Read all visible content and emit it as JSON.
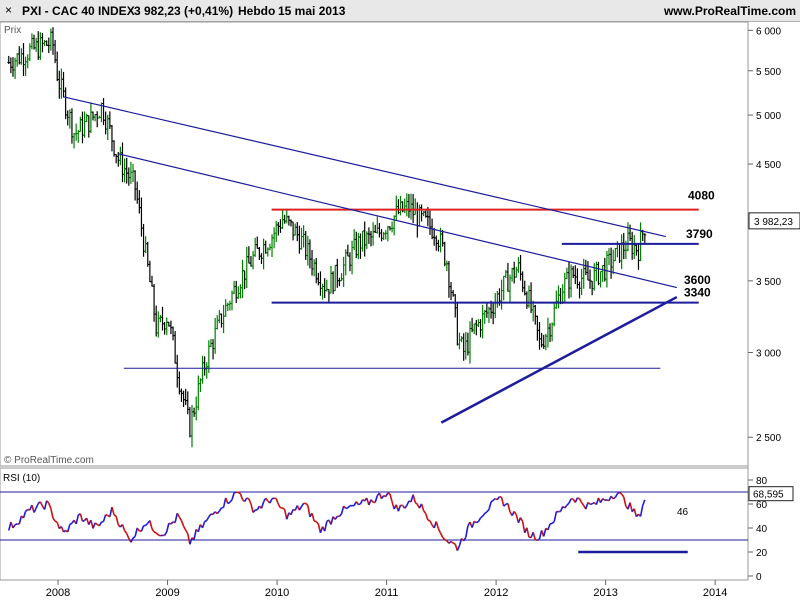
{
  "header": {
    "close_glyph": "×",
    "symbol": "PXI - CAC 40 INDEX",
    "quote": "3 982,23 (+0,41%)",
    "period": "Hebdo",
    "date": "15 mai 2013",
    "site": "www.ProRealTime.com"
  },
  "chart_data": [
    {
      "type": "line",
      "panel": "price",
      "ylabel": "Prix",
      "watermark": "© ProRealTime.com",
      "y_ticks": [
        "6 000",
        "5 500",
        "5 000",
        "4 500",
        "4 000",
        "3 500",
        "3 000",
        "2 500"
      ],
      "y_tick_values": [
        6000,
        5500,
        5000,
        4500,
        4000,
        3500,
        3000,
        2500
      ],
      "x_ticks": [
        "2008",
        "2009",
        "2010",
        "2011",
        "2012",
        "2013",
        "2014"
      ],
      "x_tick_values": [
        2008,
        2009,
        2010,
        2011,
        2012,
        2013,
        2014
      ],
      "last_price_label": "3 982,23",
      "last_price": 3982.23,
      "colors": {
        "up": "#008000",
        "down": "#000000",
        "trend": "#1c1c9c",
        "resistance": "#dd2222"
      },
      "series": [
        {
          "name": "",
          "x": [
            2007.55,
            2007.75,
            2007.95,
            2008.0,
            2008.15,
            2008.3,
            2008.4,
            2008.55,
            2008.7,
            2008.8,
            2008.9,
            2009.0,
            2009.1,
            2009.2,
            2009.35,
            2009.5,
            2009.65,
            2009.8,
            2009.95,
            2010.05,
            2010.2,
            2010.35,
            2010.45,
            2010.6,
            2010.75,
            2010.9,
            2011.0,
            2011.1,
            2011.2,
            2011.3,
            2011.45,
            2011.55,
            2011.65,
            2011.7,
            2011.8,
            2011.95,
            2012.1,
            2012.2,
            2012.3,
            2012.4,
            2012.5,
            2012.6,
            2012.7,
            2012.85,
            2013.0,
            2013.1,
            2013.2,
            2013.3,
            2013.37
          ],
          "y": [
            5600,
            5750,
            5850,
            5400,
            4800,
            4950,
            5100,
            4550,
            4300,
            3700,
            3150,
            3250,
            2850,
            2550,
            2950,
            3250,
            3500,
            3700,
            3850,
            4000,
            3850,
            3600,
            3450,
            3600,
            3800,
            3850,
            3950,
            4050,
            4100,
            4000,
            3900,
            3650,
            3100,
            3000,
            3150,
            3300,
            3500,
            3600,
            3350,
            3050,
            3200,
            3450,
            3550,
            3500,
            3600,
            3700,
            3800,
            3750,
            3982.23
          ]
        }
      ],
      "annotations": [
        {
          "text": "4080",
          "y": 4080
        },
        {
          "text": "3790",
          "y": 3790
        },
        {
          "text": "3600",
          "y": 3600
        },
        {
          "text": "3340",
          "y": 3340
        }
      ],
      "horizontal_lines": [
        {
          "y": 4080,
          "x": [
            2009.95,
            2013.85
          ],
          "color": "red"
        },
        {
          "y": 3790,
          "x": [
            2012.6,
            2013.85
          ],
          "color": "blue"
        },
        {
          "y": 3340,
          "x": [
            2009.95,
            2013.85
          ],
          "color": "blue"
        },
        {
          "y": 2900,
          "x": [
            2008.6,
            2013.5
          ],
          "color": "blue"
        }
      ],
      "trendlines": [
        {
          "x": [
            2008.05,
            2013.55
          ],
          "y": [
            5200,
            3850
          ]
        },
        {
          "x": [
            2008.55,
            2013.65
          ],
          "y": [
            4600,
            3450
          ]
        },
        {
          "x": [
            2011.5,
            2013.65
          ],
          "y": [
            2580,
            3380
          ]
        }
      ]
    },
    {
      "type": "line",
      "panel": "rsi",
      "title": "RSI (10)",
      "y_ticks": [
        "80",
        "60",
        "40",
        "20",
        "0"
      ],
      "y_tick_values": [
        80,
        60,
        40,
        20,
        0
      ],
      "ylim": [
        0,
        80
      ],
      "last_value_label": "68,595",
      "last_value": 68.595,
      "side_label": "46",
      "reference_lines": [
        70,
        30
      ],
      "signal_line": {
        "y": 20,
        "x": [
          2012.75,
          2013.75
        ]
      },
      "series": [
        {
          "name": "",
          "x": [
            2007.55,
            2007.75,
            2007.9,
            2008.05,
            2008.2,
            2008.35,
            2008.5,
            2008.65,
            2008.8,
            2008.95,
            2009.1,
            2009.2,
            2009.35,
            2009.5,
            2009.65,
            2009.8,
            2009.95,
            2010.1,
            2010.25,
            2010.4,
            2010.55,
            2010.7,
            2010.85,
            2011.0,
            2011.1,
            2011.25,
            2011.4,
            2011.55,
            2011.65,
            2011.75,
            2011.9,
            2012.05,
            2012.2,
            2012.3,
            2012.4,
            2012.55,
            2012.7,
            2012.85,
            2013.0,
            2013.1,
            2013.2,
            2013.3,
            2013.37
          ],
          "y": [
            40,
            55,
            60,
            35,
            50,
            40,
            55,
            30,
            45,
            35,
            50,
            28,
            45,
            60,
            70,
            55,
            65,
            50,
            60,
            38,
            52,
            58,
            62,
            70,
            55,
            65,
            48,
            30,
            24,
            40,
            55,
            64,
            48,
            35,
            33,
            50,
            66,
            58,
            64,
            70,
            60,
            48,
            68.6
          ]
        }
      ]
    }
  ]
}
